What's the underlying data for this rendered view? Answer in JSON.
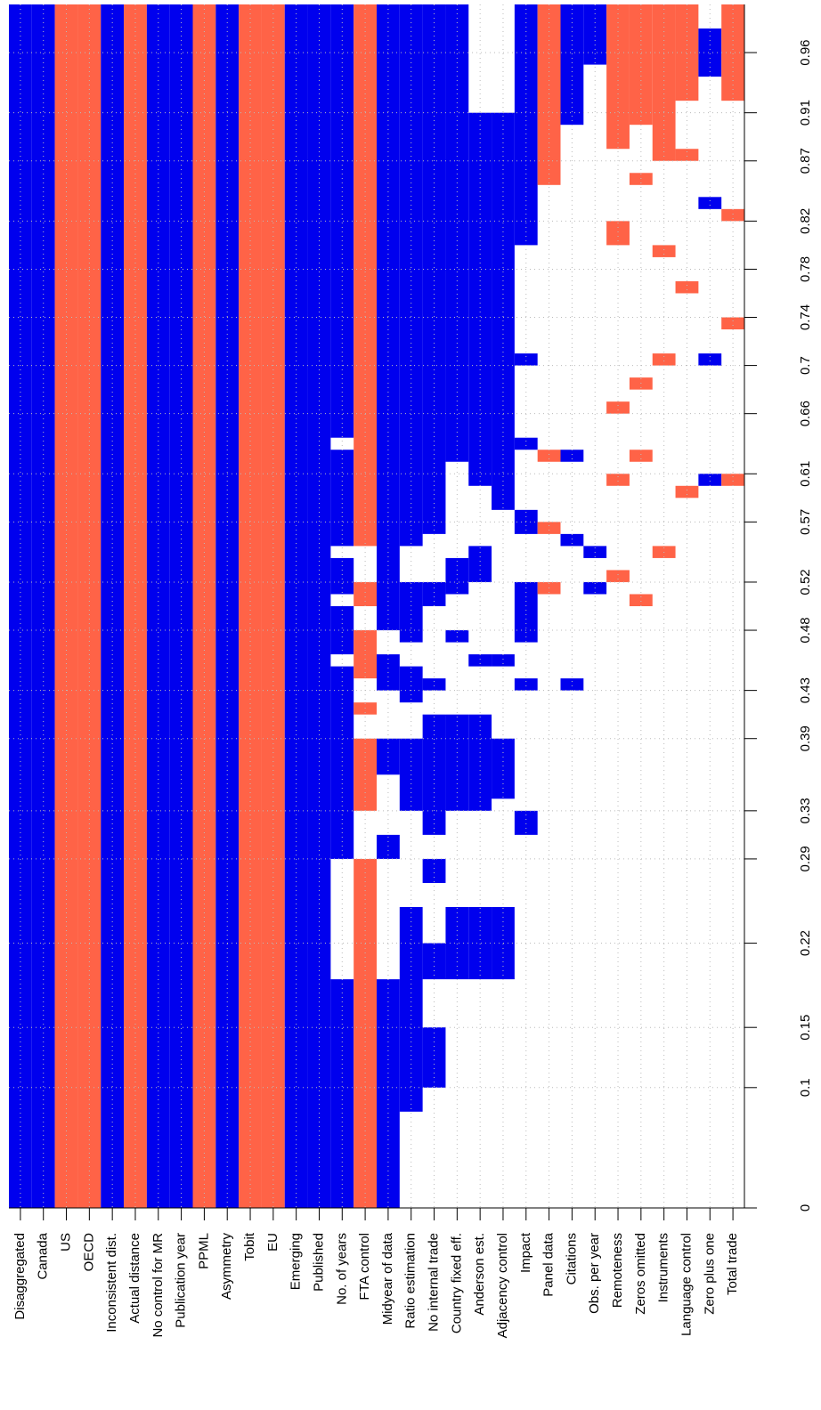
{
  "chart_data": {
    "type": "inclusion",
    "ylim": [
      0,
      1
    ],
    "yticks": [
      0,
      0.1,
      0.15,
      0.22,
      0.29,
      0.33,
      0.39,
      0.43,
      0.48,
      0.52,
      0.57,
      0.61,
      0.66,
      0.7,
      0.74,
      0.78,
      0.82,
      0.87,
      0.91,
      0.96
    ],
    "grid": true,
    "series": [
      {
        "name": "Disaggregated",
        "color": "#0000ee",
        "segments": [
          [
            0,
            1
          ]
        ]
      },
      {
        "name": "Canada",
        "color": "#0000ee",
        "segments": [
          [
            0,
            1
          ]
        ]
      },
      {
        "name": "US",
        "color": "#ff6347",
        "segments": [
          [
            0,
            1
          ]
        ]
      },
      {
        "name": "OECD",
        "color": "#ff6347",
        "segments": [
          [
            0,
            1
          ]
        ]
      },
      {
        "name": "Inconsistent dist.",
        "color": "#0000ee",
        "segments": [
          [
            0,
            1
          ]
        ]
      },
      {
        "name": "Actual distance",
        "color": "#ff6347",
        "segments": [
          [
            0,
            1
          ]
        ]
      },
      {
        "name": "No control for MR",
        "color": "#0000ee",
        "segments": [
          [
            0,
            1
          ]
        ]
      },
      {
        "name": "Publication year",
        "color": "#0000ee",
        "segments": [
          [
            0,
            1
          ]
        ]
      },
      {
        "name": "PPML",
        "color": "#ff6347",
        "segments": [
          [
            0,
            1
          ]
        ]
      },
      {
        "name": "Asymmetry",
        "color": "#0000ee",
        "segments": [
          [
            0,
            1
          ]
        ]
      },
      {
        "name": "Tobit",
        "color": "#ff6347",
        "segments": [
          [
            0,
            1
          ]
        ]
      },
      {
        "name": "EU",
        "color": "#ff6347",
        "segments": [
          [
            0,
            1
          ]
        ]
      },
      {
        "name": "Emerging",
        "color": "#0000ee",
        "segments": [
          [
            0,
            1
          ]
        ]
      },
      {
        "name": "Published",
        "color": "#0000ee",
        "segments": [
          [
            0,
            1
          ]
        ]
      },
      {
        "name": "No. of years",
        "color": "#0000ee",
        "segments": [
          [
            0,
            0.19
          ],
          [
            0.29,
            0.45
          ],
          [
            0.46,
            0.5
          ],
          [
            0.51,
            0.54
          ],
          [
            0.55,
            0.63
          ],
          [
            0.64,
            1
          ]
        ]
      },
      {
        "name": "FTA control",
        "color": "#ff6347",
        "segments": [
          [
            0,
            0.29
          ],
          [
            0.33,
            0.39
          ],
          [
            0.41,
            0.42
          ],
          [
            0.44,
            0.48
          ],
          [
            0.5,
            0.52
          ],
          [
            0.55,
            1
          ]
        ]
      },
      {
        "name": "Midyear of data",
        "color": "#0000ee",
        "segments": [
          [
            0,
            0.19
          ],
          [
            0.29,
            0.31
          ],
          [
            0.36,
            0.39
          ],
          [
            0.43,
            0.46
          ],
          [
            0.48,
            1
          ]
        ]
      },
      {
        "name": "Ratio estimation",
        "color": "#0000ee",
        "segments": [
          [
            0.08,
            0.25
          ],
          [
            0.33,
            0.39
          ],
          [
            0.42,
            0.45
          ],
          [
            0.47,
            0.52
          ],
          [
            0.55,
            1
          ]
        ]
      },
      {
        "name": "No internal trade",
        "color": "#0000ee",
        "segments": [
          [
            0.1,
            0.15
          ],
          [
            0.19,
            0.22
          ],
          [
            0.27,
            0.29
          ],
          [
            0.31,
            0.41
          ],
          [
            0.43,
            0.44
          ],
          [
            0.5,
            0.52
          ],
          [
            0.56,
            1
          ]
        ]
      },
      {
        "name": "Country fixed eff.",
        "color": "#0000ee",
        "segments": [
          [
            0.19,
            0.25
          ],
          [
            0.33,
            0.41
          ],
          [
            0.47,
            0.48
          ],
          [
            0.51,
            0.54
          ],
          [
            0.62,
            1
          ]
        ]
      },
      {
        "name": "Anderson est.",
        "color": "#0000ee",
        "segments": [
          [
            0.19,
            0.25
          ],
          [
            0.33,
            0.41
          ],
          [
            0.45,
            0.46
          ],
          [
            0.52,
            0.55
          ],
          [
            0.6,
            0.91
          ]
        ]
      },
      {
        "name": "Adjacency control",
        "color": "#0000ee",
        "segments": [
          [
            0.19,
            0.25
          ],
          [
            0.34,
            0.39
          ],
          [
            0.45,
            0.46
          ],
          [
            0.58,
            0.91
          ]
        ]
      },
      {
        "name": "Impact",
        "color": "#0000ee",
        "segments": [
          [
            0.31,
            0.33
          ],
          [
            0.43,
            0.44
          ],
          [
            0.47,
            0.52
          ],
          [
            0.56,
            0.58
          ],
          [
            0.63,
            0.64
          ],
          [
            0.7,
            0.71
          ],
          [
            0.8,
            1
          ]
        ]
      },
      {
        "name": "Panel data",
        "color": "#ff6347",
        "segments": [
          [
            0.51,
            0.52
          ],
          [
            0.56,
            0.57
          ],
          [
            0.62,
            0.63
          ],
          [
            0.85,
            1
          ]
        ]
      },
      {
        "name": "Citations",
        "color": "#0000ee",
        "segments": [
          [
            0.43,
            0.44
          ],
          [
            0.55,
            0.56
          ],
          [
            0.62,
            0.63
          ],
          [
            0.9,
            1
          ]
        ]
      },
      {
        "name": "Obs. per year",
        "color": "#0000ee",
        "segments": [
          [
            0.51,
            0.52
          ],
          [
            0.54,
            0.55
          ],
          [
            0.95,
            1
          ]
        ]
      },
      {
        "name": "Remoteness",
        "color": "#ff6347",
        "segments": [
          [
            0.52,
            0.53
          ],
          [
            0.6,
            0.61
          ],
          [
            0.66,
            0.67
          ],
          [
            0.8,
            0.82
          ],
          [
            0.88,
            1
          ]
        ]
      },
      {
        "name": "Zeros omitted",
        "color": "#ff6347",
        "segments": [
          [
            0.5,
            0.51
          ],
          [
            0.62,
            0.63
          ],
          [
            0.68,
            0.69
          ],
          [
            0.85,
            0.86
          ],
          [
            0.9,
            1
          ]
        ]
      },
      {
        "name": "Instruments",
        "color": "#ff6347",
        "segments": [
          [
            0.54,
            0.55
          ],
          [
            0.7,
            0.71
          ],
          [
            0.79,
            0.8
          ],
          [
            0.87,
            1
          ]
        ]
      },
      {
        "name": "Language control",
        "color": "#ff6347",
        "segments": [
          [
            0.59,
            0.6
          ],
          [
            0.76,
            0.77
          ],
          [
            0.87,
            0.88
          ],
          [
            0.92,
            1
          ]
        ]
      },
      {
        "name": "Zero plus one",
        "color": "#0000ee",
        "segments": [
          [
            0.6,
            0.61
          ],
          [
            0.7,
            0.71
          ],
          [
            0.83,
            0.84
          ],
          [
            0.94,
            0.98
          ]
        ]
      },
      {
        "name": "Total trade",
        "color": "#ff6347",
        "segments": [
          [
            0.6,
            0.61
          ],
          [
            0.73,
            0.74
          ],
          [
            0.82,
            0.83
          ],
          [
            0.92,
            1
          ]
        ]
      }
    ]
  }
}
